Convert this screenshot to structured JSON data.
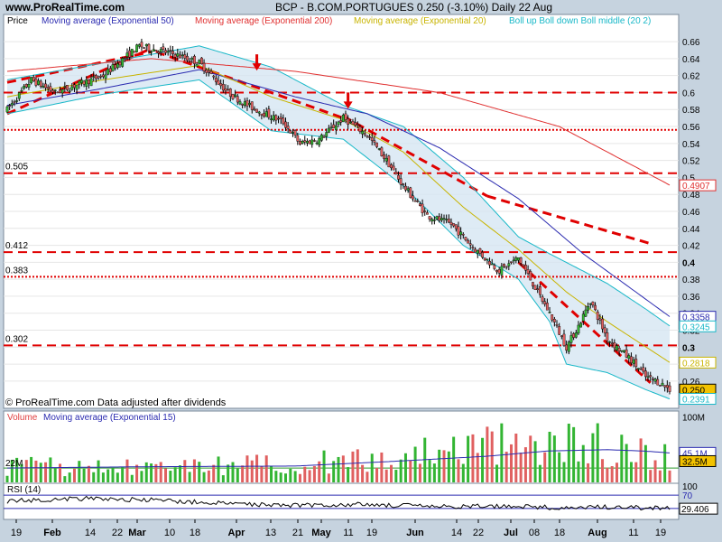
{
  "header": {
    "site": "www.ProRealTime.com",
    "title": "BCP - B.COM.PORTUGUES    0.250 (-3.10%)    Daily  22 Aug"
  },
  "legend": [
    {
      "label": "Price",
      "color": "#000000"
    },
    {
      "label": "Moving average (Exponential 50)",
      "color": "#2b2bb0"
    },
    {
      "label": "Moving average (Exponential 200)",
      "color": "#e03030"
    },
    {
      "label": "Moving average (Exponential 20)",
      "color": "#c8b400"
    },
    {
      "label": "Boll up Boll down Boll middle (20 2)",
      "color": "#19b8c8"
    }
  ],
  "footnote": "© ProRealTime.com  Data adjusted after dividends",
  "colors": {
    "up": "#33b533",
    "down": "#e06060",
    "support": "#e00000",
    "bb": "#19b8c8",
    "ema20": "#c8b400",
    "ema50": "#2b2bb0",
    "ema200": "#e03030"
  },
  "chart_data": [
    {
      "type": "candlestick",
      "panel": "price",
      "ylim": [
        0.229,
        0.675
      ],
      "y_ticks": [
        0.26,
        0.28,
        0.3,
        0.32,
        0.34,
        0.36,
        0.38,
        0.4,
        0.42,
        0.44,
        0.46,
        0.48,
        0.5,
        0.52,
        0.54,
        0.56,
        0.58,
        0.6,
        0.62,
        0.64,
        0.66
      ],
      "y_tick_labels": [
        "0.26",
        "0.28",
        "0.3",
        "0.32",
        "0.34",
        "0.36",
        "0.38",
        "0.4",
        "0.42",
        "0.44",
        "0.46",
        "0.48",
        "0.5",
        "0.52",
        "0.54",
        "0.56",
        "0.58",
        "0.6",
        "0.62",
        "0.64",
        "0.66"
      ],
      "bold_ticks": [
        0.3,
        0.4
      ],
      "x_labels": [
        "19",
        "Feb",
        "14",
        "22",
        "Mar",
        "10",
        "18",
        "Apr",
        "13",
        "21",
        "May",
        "11",
        "19",
        "Jun",
        "14",
        "22",
        "Jul",
        "08",
        "18",
        "Aug",
        "11",
        "19"
      ],
      "bold_x_labels": [
        "Feb",
        "Mar",
        "Apr",
        "May",
        "Jun",
        "Jul",
        "Aug"
      ],
      "support_levels": [
        {
          "value": 0.505,
          "label": "0.505",
          "style": "dashed"
        },
        {
          "value": 0.412,
          "label": "0.412",
          "style": "dashed"
        },
        {
          "value": 0.383,
          "label": "0.383",
          "style": "dotted"
        },
        {
          "value": 0.302,
          "label": "0.302",
          "style": "dashed"
        },
        {
          "value": 0.6,
          "label": "",
          "style": "dashed"
        },
        {
          "value": 0.556,
          "label": "",
          "style": "dotted"
        }
      ],
      "trendlines": [
        {
          "from": [
            0,
            0.575
          ],
          "to": [
            60,
            0.652
          ]
        },
        {
          "from": [
            0,
            0.612
          ],
          "to": [
            60,
            0.648
          ]
        },
        {
          "from": [
            62,
            0.648
          ],
          "to": [
            140,
            0.57
          ]
        },
        {
          "from": [
            140,
            0.572
          ],
          "to": [
            200,
            0.478
          ]
        },
        {
          "from": [
            200,
            0.478
          ],
          "to": [
            268,
            0.422
          ]
        },
        {
          "from": [
            213,
            0.4
          ],
          "to": [
            268,
            0.258
          ]
        }
      ],
      "arrows": [
        {
          "x": 104,
          "value": 0.628
        },
        {
          "x": 142,
          "value": 0.583
        }
      ],
      "right_tags": [
        {
          "value": 0.4907,
          "label": "0.4907",
          "color": "#e03030",
          "bg": "#ffffff"
        },
        {
          "value": 0.3358,
          "label": "0.3358",
          "color": "#2b2bb0",
          "bg": "#ffffff"
        },
        {
          "value": 0.3245,
          "label": "0.3245",
          "color": "#19b8c8",
          "bg": "#ffffff"
        },
        {
          "value": 0.2818,
          "label": "0.2818",
          "color": "#c8b400",
          "bg": "#ffffff"
        },
        {
          "value": 0.25,
          "label": "0.250",
          "color": "#000000",
          "bg": "#f2c200"
        },
        {
          "value": 0.2391,
          "label": "0.2391",
          "color": "#19b8c8",
          "bg": "#ffffff"
        }
      ],
      "close_anchors": [
        [
          0,
          0.58
        ],
        [
          10,
          0.615
        ],
        [
          20,
          0.6
        ],
        [
          40,
          0.62
        ],
        [
          55,
          0.655
        ],
        [
          70,
          0.645
        ],
        [
          80,
          0.635
        ],
        [
          92,
          0.6
        ],
        [
          100,
          0.585
        ],
        [
          115,
          0.565
        ],
        [
          122,
          0.54
        ],
        [
          130,
          0.545
        ],
        [
          140,
          0.57
        ],
        [
          150,
          0.55
        ],
        [
          158,
          0.52
        ],
        [
          165,
          0.49
        ],
        [
          175,
          0.455
        ],
        [
          185,
          0.445
        ],
        [
          195,
          0.415
        ],
        [
          205,
          0.39
        ],
        [
          213,
          0.405
        ],
        [
          218,
          0.38
        ],
        [
          226,
          0.34
        ],
        [
          233,
          0.3
        ],
        [
          238,
          0.325
        ],
        [
          243,
          0.355
        ],
        [
          250,
          0.31
        ],
        [
          260,
          0.285
        ],
        [
          266,
          0.265
        ],
        [
          272,
          0.258
        ],
        [
          276,
          0.25
        ]
      ],
      "ema20_anchors": [
        [
          0,
          0.595
        ],
        [
          40,
          0.615
        ],
        [
          80,
          0.632
        ],
        [
          110,
          0.595
        ],
        [
          140,
          0.568
        ],
        [
          165,
          0.53
        ],
        [
          190,
          0.465
        ],
        [
          213,
          0.415
        ],
        [
          233,
          0.365
        ],
        [
          250,
          0.33
        ],
        [
          276,
          0.282
        ]
      ],
      "ema50_anchors": [
        [
          0,
          0.585
        ],
        [
          40,
          0.605
        ],
        [
          80,
          0.627
        ],
        [
          120,
          0.595
        ],
        [
          150,
          0.575
        ],
        [
          180,
          0.535
        ],
        [
          213,
          0.475
        ],
        [
          240,
          0.41
        ],
        [
          276,
          0.336
        ]
      ],
      "ema200_anchors": [
        [
          0,
          0.625
        ],
        [
          60,
          0.64
        ],
        [
          120,
          0.625
        ],
        [
          180,
          0.6
        ],
        [
          230,
          0.56
        ],
        [
          276,
          0.491
        ]
      ],
      "bb_upper_anchors": [
        [
          0,
          0.615
        ],
        [
          40,
          0.635
        ],
        [
          80,
          0.655
        ],
        [
          110,
          0.63
        ],
        [
          140,
          0.585
        ],
        [
          165,
          0.56
        ],
        [
          190,
          0.5
        ],
        [
          213,
          0.43
        ],
        [
          226,
          0.41
        ],
        [
          250,
          0.375
        ],
        [
          266,
          0.345
        ],
        [
          276,
          0.325
        ]
      ],
      "bb_lower_anchors": [
        [
          0,
          0.575
        ],
        [
          40,
          0.598
        ],
        [
          80,
          0.615
        ],
        [
          110,
          0.555
        ],
        [
          140,
          0.545
        ],
        [
          165,
          0.49
        ],
        [
          190,
          0.42
        ],
        [
          213,
          0.38
        ],
        [
          226,
          0.33
        ],
        [
          233,
          0.28
        ],
        [
          250,
          0.27
        ],
        [
          266,
          0.25
        ],
        [
          276,
          0.239
        ]
      ]
    },
    {
      "type": "bar",
      "panel": "volume",
      "title": "Volume",
      "legend_ema": "Moving average (Exponential 15)",
      "ylim": [
        0,
        105
      ],
      "y_ticks": [
        {
          "value": 100,
          "label": "100M"
        }
      ],
      "left_level": {
        "value": 22,
        "label": "22M"
      },
      "right_tags": [
        {
          "value": 45.1,
          "label": "45.1M",
          "color": "#2b2bb0",
          "bg": "#ffffff"
        },
        {
          "value": 32.5,
          "label": "32.5M",
          "color": "#000000",
          "bg": "#f2c200"
        }
      ],
      "ema_anchors": [
        [
          0,
          22
        ],
        [
          60,
          24
        ],
        [
          120,
          25
        ],
        [
          160,
          32
        ],
        [
          200,
          40
        ],
        [
          225,
          48
        ],
        [
          250,
          50
        ],
        [
          265,
          48
        ],
        [
          276,
          45
        ]
      ],
      "volume_anchors": [
        [
          0,
          25
        ],
        [
          60,
          22
        ],
        [
          120,
          28
        ],
        [
          160,
          40
        ],
        [
          200,
          55
        ],
        [
          230,
          65
        ],
        [
          250,
          55
        ],
        [
          276,
          35
        ]
      ]
    },
    {
      "type": "line",
      "panel": "rsi",
      "title": "RSI (14)",
      "ylim": [
        0,
        100
      ],
      "levels": [
        {
          "value": 70,
          "label": "70"
        }
      ],
      "y_ticks": [
        {
          "value": 100,
          "label": "100"
        }
      ],
      "last_value": {
        "value": 29.406,
        "label": "29.406"
      },
      "rsi_anchors": [
        [
          0,
          52
        ],
        [
          30,
          60
        ],
        [
          60,
          55
        ],
        [
          90,
          45
        ],
        [
          120,
          40
        ],
        [
          150,
          42
        ],
        [
          180,
          35
        ],
        [
          213,
          38
        ],
        [
          233,
          30
        ],
        [
          250,
          35
        ],
        [
          276,
          29.4
        ]
      ]
    }
  ]
}
